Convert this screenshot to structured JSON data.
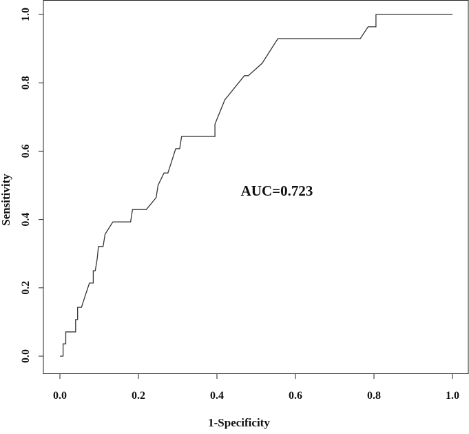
{
  "chart_data": {
    "type": "line",
    "title": "",
    "xlabel": "1-Specificity",
    "ylabel": "Sensitivity",
    "xlim": [
      0.0,
      1.0
    ],
    "ylim": [
      0.0,
      1.0
    ],
    "xticks": [
      "0.0",
      "0.2",
      "0.4",
      "0.6",
      "0.8",
      "1.0"
    ],
    "yticks": [
      "0.0",
      "0.2",
      "0.4",
      "0.6",
      "0.8",
      "1.0"
    ],
    "grid": false,
    "legend": "none",
    "annotation": "AUC=0.723",
    "line_color": "#333333",
    "series": [
      {
        "x": [
          0.0,
          0.008,
          0.008,
          0.015,
          0.015,
          0.02,
          0.02,
          0.04,
          0.04,
          0.045,
          0.045,
          0.055,
          0.055,
          0.065,
          0.065,
          0.075,
          0.075,
          0.085,
          0.085,
          0.09,
          0.09,
          0.095,
          0.095,
          0.098,
          0.098,
          0.11,
          0.11,
          0.115,
          0.115,
          0.135,
          0.135,
          0.18,
          0.18,
          0.185,
          0.185,
          0.19,
          0.19,
          0.22,
          0.22,
          0.245,
          0.245,
          0.25,
          0.25,
          0.265,
          0.265,
          0.275,
          0.275,
          0.285,
          0.285,
          0.295,
          0.295,
          0.305,
          0.305,
          0.31,
          0.31,
          0.315,
          0.315,
          0.345,
          0.345,
          0.395,
          0.395,
          0.42,
          0.42,
          0.47,
          0.47,
          0.475,
          0.475,
          0.48,
          0.48,
          0.515,
          0.515,
          0.525,
          0.525,
          0.555,
          0.555,
          0.765,
          0.765,
          0.785,
          0.785,
          0.805,
          0.805,
          0.84,
          1.0
        ],
        "y": [
          0.0,
          0.0,
          0.036,
          0.036,
          0.071,
          0.071,
          0.071,
          0.071,
          0.107,
          0.107,
          0.143,
          0.143,
          0.143,
          0.179,
          0.179,
          0.214,
          0.214,
          0.214,
          0.25,
          0.25,
          0.25,
          0.286,
          0.286,
          0.321,
          0.321,
          0.321,
          0.321,
          0.357,
          0.357,
          0.393,
          0.393,
          0.393,
          0.393,
          0.429,
          0.429,
          0.429,
          0.429,
          0.429,
          0.429,
          0.464,
          0.464,
          0.5,
          0.5,
          0.536,
          0.536,
          0.536,
          0.536,
          0.571,
          0.571,
          0.607,
          0.607,
          0.607,
          0.607,
          0.643,
          0.643,
          0.643,
          0.643,
          0.643,
          0.643,
          0.643,
          0.679,
          0.75,
          0.75,
          0.821,
          0.821,
          0.821,
          0.821,
          0.821,
          0.821,
          0.857,
          0.857,
          0.875,
          0.875,
          0.929,
          0.929,
          0.929,
          0.929,
          0.964,
          0.964,
          0.964,
          1.0,
          1.0,
          1.0
        ]
      }
    ]
  }
}
